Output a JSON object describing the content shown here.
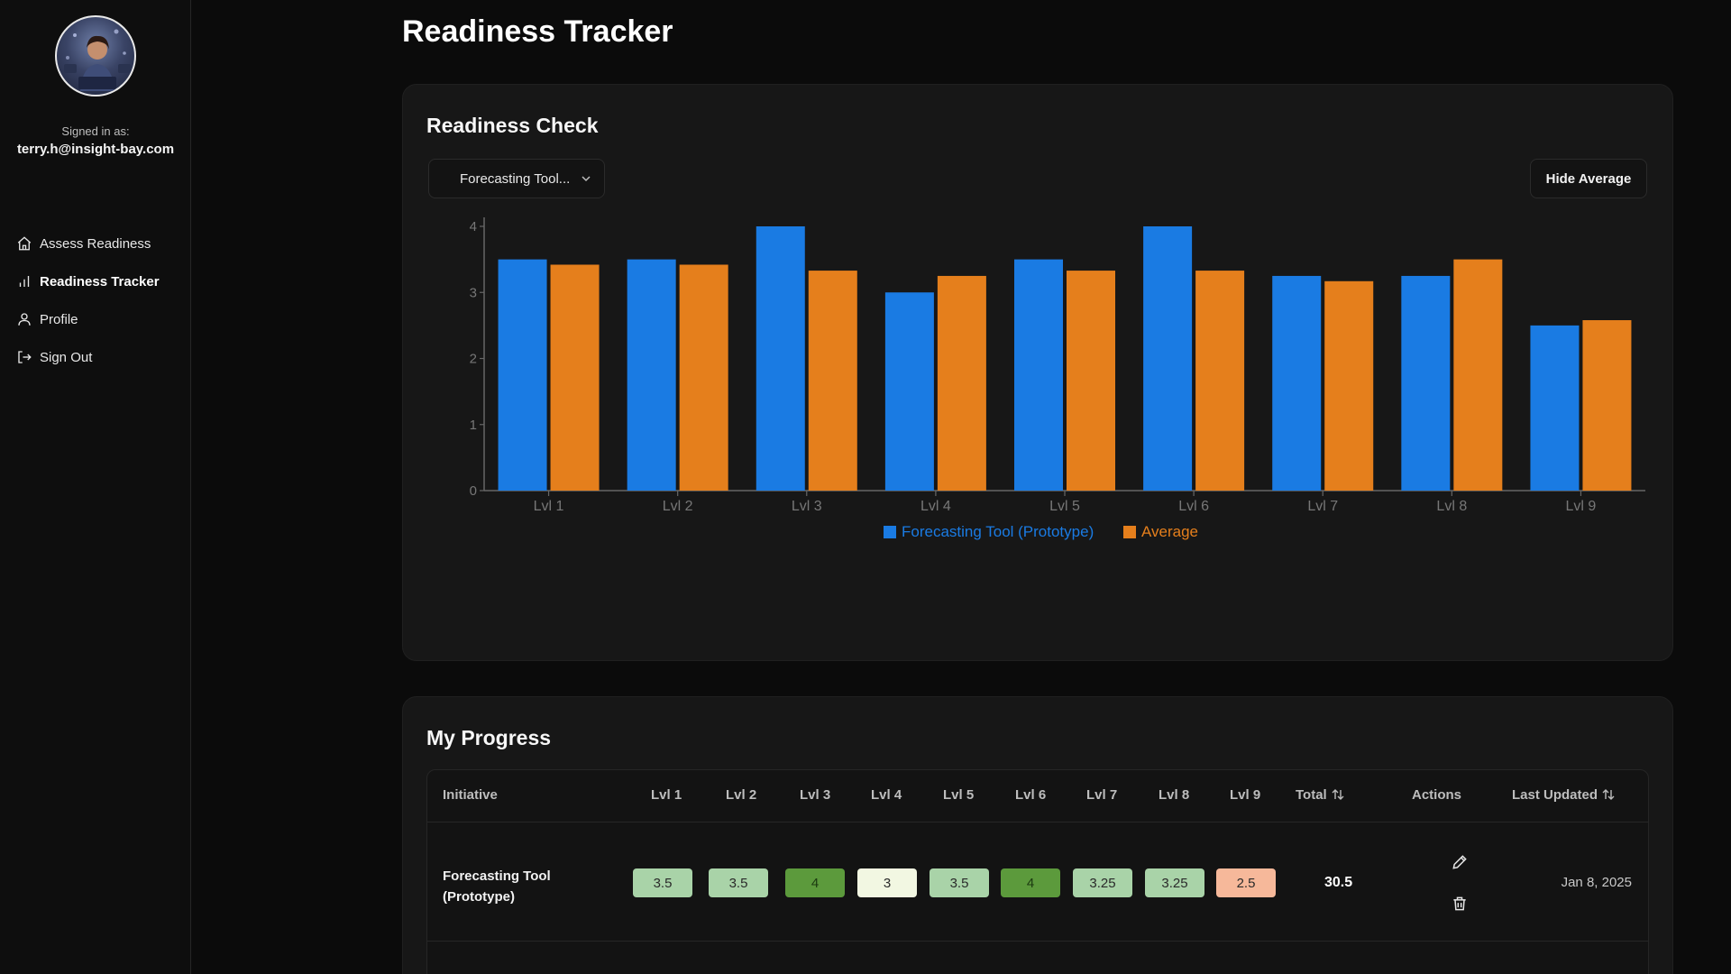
{
  "sidebar": {
    "signed_in_label": "Signed in as:",
    "email": "terry.h@insight-bay.com",
    "nav": [
      {
        "label": "Assess Readiness",
        "icon": "home-icon",
        "active": false
      },
      {
        "label": "Readiness Tracker",
        "icon": "bar-chart-icon",
        "active": true
      },
      {
        "label": "Profile",
        "icon": "user-icon",
        "active": false
      },
      {
        "label": "Sign Out",
        "icon": "sign-out-icon",
        "active": false
      }
    ]
  },
  "page_title": "Readiness Tracker",
  "readiness_card": {
    "title": "Readiness Check",
    "select_value": "Forecasting Tool...",
    "hide_average_label": "Hide Average"
  },
  "chart_data": {
    "type": "bar",
    "categories": [
      "Lvl 1",
      "Lvl 2",
      "Lvl 3",
      "Lvl 4",
      "Lvl 5",
      "Lvl 6",
      "Lvl 7",
      "Lvl 8",
      "Lvl 9"
    ],
    "series": [
      {
        "name": "Forecasting Tool (Prototype)",
        "color": "#1a7be3",
        "values": [
          3.5,
          3.5,
          4,
          3,
          3.5,
          4,
          3.25,
          3.25,
          2.5
        ]
      },
      {
        "name": "Average",
        "color": "#e57f1c",
        "values": [
          3.42,
          3.42,
          3.33,
          3.25,
          3.33,
          3.33,
          3.17,
          3.5,
          2.58
        ]
      }
    ],
    "ylim": [
      0,
      4
    ],
    "yticks": [
      "0",
      "1",
      "2",
      "3",
      "4"
    ],
    "grid": false,
    "legend": "bottom-center"
  },
  "progress_card": {
    "title": "My Progress",
    "headers": {
      "initiative": "Initiative",
      "levels": [
        "Lvl 1",
        "Lvl 2",
        "Lvl 3",
        "Lvl 4",
        "Lvl 5",
        "Lvl 6",
        "Lvl 7",
        "Lvl 8",
        "Lvl 9"
      ],
      "total": "Total",
      "actions": "Actions",
      "last_updated": "Last Updated"
    },
    "rows": [
      {
        "initiative": "Forecasting Tool (Prototype)",
        "scores": [
          "3.5",
          "3.5",
          "4",
          "3",
          "3.5",
          "4",
          "3.25",
          "3.25",
          "2.5"
        ],
        "score_colors": [
          "#a9d3a8",
          "#a9d3a8",
          "#5c9a3c",
          "#f2f7e2",
          "#a9d3a8",
          "#5c9a3c",
          "#a9d3a8",
          "#a9d3a8",
          "#f6b89a"
        ],
        "total": "30.5",
        "last_updated": "Jan 8, 2025"
      }
    ]
  }
}
